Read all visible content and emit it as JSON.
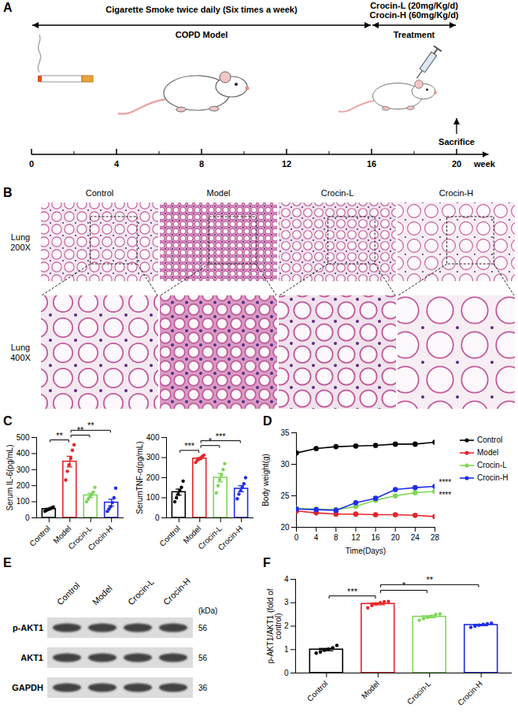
{
  "figure": {
    "A": {
      "letter": "A",
      "type": "timeline",
      "title": "Cigarette Smoke twice daily (Six times a week)",
      "phases": [
        {
          "label": "COPD Model",
          "from": 0,
          "to": 16
        },
        {
          "label": "Treatment",
          "from": 16,
          "to": 20
        }
      ],
      "doses": [
        "Crocin-L (20mg/Kg/d)",
        "Crocin-H (60mg/Kg/d)"
      ],
      "event": {
        "label": "Sacrifice",
        "at": 20
      },
      "xlim": [
        0,
        21.5
      ],
      "xticks": [
        0,
        4,
        8,
        12,
        16,
        20
      ],
      "xlabel": "week"
    },
    "B": {
      "letter": "B",
      "type": "image_grid",
      "columns": [
        "Control",
        "Model",
        "Crocin-L",
        "Crocin-H"
      ],
      "rows": [
        "Lung 200X",
        "Lung 400X"
      ]
    },
    "E": {
      "letter": "E",
      "type": "western_blot",
      "columns": [
        "Control",
        "Model",
        "Crocin-L",
        "Crocin-H"
      ],
      "unit": "(kDa)",
      "rows": [
        {
          "label": "p-AKT1",
          "kda": 56
        },
        {
          "label": "AKT1",
          "kda": 56
        },
        {
          "label": "GAPDH",
          "kda": 36
        }
      ]
    }
  },
  "chart_data": [
    {
      "letter": "C",
      "type": "bar",
      "ylabel": "Serum IL-6(pg/mL)",
      "categories": [
        "Control",
        "Model",
        "Crocin-L",
        "Crocin-H"
      ],
      "values": [
        55,
        350,
        140,
        95
      ],
      "errors": [
        5,
        33,
        13,
        21
      ],
      "points": [
        [
          42,
          48,
          52,
          58,
          62,
          68
        ],
        [
          235,
          290,
          330,
          370,
          420,
          455
        ],
        [
          100,
          115,
          130,
          145,
          160,
          190
        ],
        [
          40,
          55,
          70,
          95,
          125,
          185
        ]
      ],
      "colors": [
        "#000000",
        "#e5262a",
        "#7fd65a",
        "#1f2ee6"
      ],
      "ylim": [
        0,
        500
      ],
      "yticks": [
        0,
        100,
        200,
        300,
        400,
        500
      ],
      "significance": [
        {
          "from": "Control",
          "to": "Model",
          "label": "**"
        },
        {
          "from": "Model",
          "to": "Crocin-L",
          "label": "**"
        },
        {
          "from": "Model",
          "to": "Crocin-H",
          "label": "**"
        }
      ]
    },
    {
      "type": "bar",
      "ylabel": "SerumTNF-α(pg/mL)",
      "categories": [
        "Control",
        "Model",
        "Crocin-L",
        "Crocin-H"
      ],
      "values": [
        128,
        295,
        200,
        145
      ],
      "errors": [
        15,
        5,
        21,
        15
      ],
      "points": [
        [
          80,
          100,
          118,
          135,
          152,
          183
        ],
        [
          276,
          286,
          292,
          298,
          306,
          312
        ],
        [
          125,
          160,
          190,
          215,
          240,
          270
        ],
        [
          95,
          118,
          135,
          152,
          170,
          200
        ]
      ],
      "colors": [
        "#000000",
        "#e5262a",
        "#7fd65a",
        "#1f2ee6"
      ],
      "ylim": [
        0,
        400
      ],
      "yticks": [
        0,
        100,
        200,
        300,
        400
      ],
      "significance": [
        {
          "from": "Control",
          "to": "Model",
          "label": "***"
        },
        {
          "from": "Model",
          "to": "Crocin-L",
          "label": "*"
        },
        {
          "from": "Model",
          "to": "Crocin-H",
          "label": "***"
        }
      ]
    },
    {
      "letter": "D",
      "type": "line",
      "xlabel": "Time(Days)",
      "ylabel": "Body weight(g)",
      "x": [
        0,
        4,
        8,
        12,
        16,
        20,
        24,
        28
      ],
      "series": [
        {
          "name": "Control",
          "color": "#000000",
          "values": [
            31.8,
            32.5,
            32.8,
            32.9,
            33.0,
            33.2,
            33.2,
            33.5
          ]
        },
        {
          "name": "Model",
          "color": "#e5262a",
          "values": [
            22.6,
            22.3,
            22.1,
            22.1,
            22.0,
            22.0,
            21.9,
            21.7
          ]
        },
        {
          "name": "Crocin-L",
          "color": "#7fd65a",
          "values": [
            23.0,
            22.9,
            22.8,
            23.3,
            24.3,
            25.0,
            25.5,
            25.7
          ],
          "annotation": "****"
        },
        {
          "name": "Crocin-H",
          "color": "#1f2ee6",
          "values": [
            22.9,
            22.8,
            22.7,
            23.9,
            24.6,
            26.0,
            26.3,
            26.5
          ],
          "annotation": "****"
        }
      ],
      "marker": "circle",
      "xlim": [
        0,
        28
      ],
      "xticks": [
        0,
        4,
        8,
        12,
        16,
        20,
        24,
        28
      ],
      "ylim": [
        20,
        35
      ],
      "yticks": [
        20,
        25,
        30,
        35
      ],
      "legend": "right"
    },
    {
      "letter": "F",
      "type": "bar",
      "ylabel": "p-AKT1/AKT1 (fold of control)",
      "categories": [
        "Control",
        "Model",
        "Crocin-L",
        "Crocin-H"
      ],
      "values": [
        1.0,
        2.95,
        2.4,
        2.05
      ],
      "errors": [
        0.05,
        0.04,
        0.04,
        0.03
      ],
      "points": [
        [
          0.85,
          0.9,
          0.97,
          1.02,
          1.08,
          1.18
        ],
        [
          2.78,
          2.88,
          2.95,
          3.0,
          3.04,
          3.05
        ],
        [
          2.25,
          2.32,
          2.38,
          2.43,
          2.5,
          2.52
        ],
        [
          1.95,
          2.0,
          2.04,
          2.08,
          2.1,
          2.13
        ]
      ],
      "colors": [
        "#000000",
        "#e5262a",
        "#7fd65a",
        "#1f2ee6"
      ],
      "ylim": [
        0,
        4
      ],
      "yticks": [
        0,
        1,
        2,
        3,
        4
      ],
      "significance": [
        {
          "from": "Control",
          "to": "Model",
          "label": "***"
        },
        {
          "from": "Model",
          "to": "Crocin-L",
          "label": "*"
        },
        {
          "from": "Model",
          "to": "Crocin-H",
          "label": "**"
        }
      ]
    }
  ]
}
